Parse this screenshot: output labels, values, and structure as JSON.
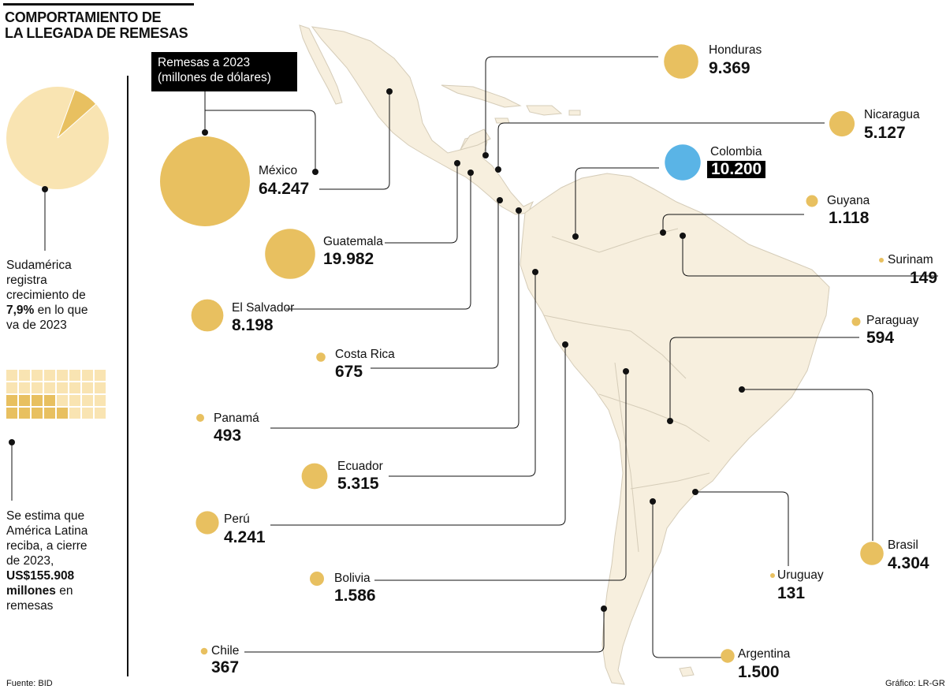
{
  "title": "COMPORTAMIENTO DE\nLA LLEGADA DE REMESAS",
  "legend_box": "Remesas a 2023\n(millones de dólares)",
  "pie_note": {
    "line1": "Sudamérica",
    "line2": "registra",
    "line3": "crecimiento de",
    "bold": "7,9%",
    "line4a": "en lo que",
    "line5": "va de 2023"
  },
  "pie": {
    "fraction": 0.079,
    "color_main": "#f9e4b2",
    "color_slice": "#e8c060"
  },
  "waffle": {
    "total_cells": 32,
    "highlighted_cells": 9,
    "color_main": "#f9e4b2",
    "color_hl": "#e8c060"
  },
  "estimate_note": {
    "line1": "Se estima que",
    "line2": "América Latina",
    "line3": "reciba, a cierre",
    "line4": "de 2023,",
    "bold1": "US$155.908",
    "bold2": "millones",
    "line5a": "en",
    "line6": "remesas"
  },
  "source": "Fuente: BID",
  "credit": "Gráfico: LR-GR",
  "colors": {
    "bubble": "#e8c060",
    "highlight": "#5ab4e6",
    "land": "#f7efde",
    "border": "#d5ccb8"
  },
  "countries": [
    {
      "name": "México",
      "value": "64.247",
      "remesas": 64247
    },
    {
      "name": "Guatemala",
      "value": "19.982",
      "remesas": 19982
    },
    {
      "name": "El Salvador",
      "value": "8.198",
      "remesas": 8198
    },
    {
      "name": "Costa Rica",
      "value": "675",
      "remesas": 675
    },
    {
      "name": "Panamá",
      "value": "493",
      "remesas": 493
    },
    {
      "name": "Ecuador",
      "value": "5.315",
      "remesas": 5315
    },
    {
      "name": "Perú",
      "value": "4.241",
      "remesas": 4241
    },
    {
      "name": "Bolivia",
      "value": "1.586",
      "remesas": 1586
    },
    {
      "name": "Chile",
      "value": "367",
      "remesas": 367
    },
    {
      "name": "Honduras",
      "value": "9.369",
      "remesas": 9369
    },
    {
      "name": "Nicaragua",
      "value": "5.127",
      "remesas": 5127
    },
    {
      "name": "Colombia",
      "value": "10.200",
      "remesas": 10200,
      "highlight": true
    },
    {
      "name": "Guyana",
      "value": "1.118",
      "remesas": 1118
    },
    {
      "name": "Surinam",
      "value": "149",
      "remesas": 149
    },
    {
      "name": "Paraguay",
      "value": "594",
      "remesas": 594
    },
    {
      "name": "Brasil",
      "value": "4.304",
      "remesas": 4304
    },
    {
      "name": "Uruguay",
      "value": "131",
      "remesas": 131
    },
    {
      "name": "Argentina",
      "value": "1.500",
      "remesas": 1500
    }
  ]
}
